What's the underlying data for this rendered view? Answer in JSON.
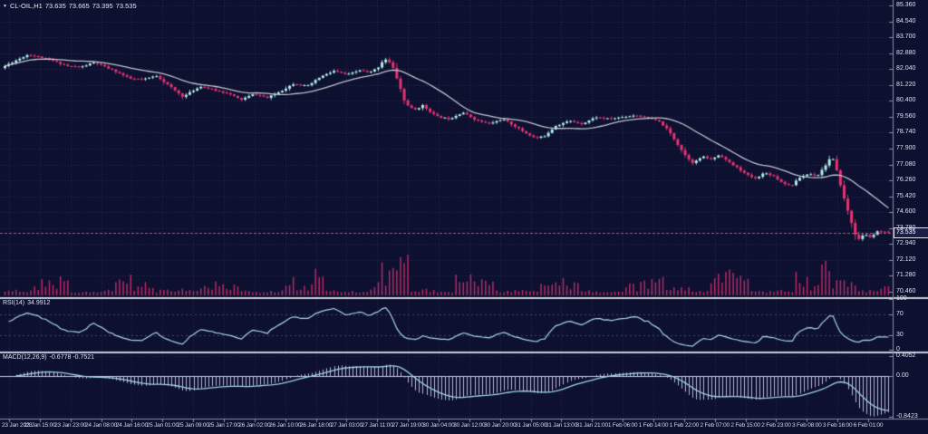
{
  "title_bar": {
    "dropdown_icon": "▼",
    "symbol": "CL-OIL,H1",
    "open": "73.635",
    "high": "73.665",
    "low": "73.395",
    "close": "73.535"
  },
  "main_panel": {
    "price_ticks": [
      "85.360",
      "84.540",
      "83.700",
      "82.880",
      "82.040",
      "81.220",
      "80.400",
      "79.560",
      "78.740",
      "77.900",
      "77.080",
      "76.260",
      "75.420",
      "74.600",
      "73.780",
      "72.940",
      "72.120",
      "71.280",
      "70.460"
    ],
    "current_price": "73.535"
  },
  "rsi_panel": {
    "label": "RSI(14)",
    "value": "34.9912",
    "ticks": [
      "100",
      "70",
      "30",
      "0"
    ]
  },
  "macd_panel": {
    "label": "MACD(12,26,9)",
    "value": "-0.6778 -0.7521",
    "ticks": [
      "0.4052",
      "0.00",
      "-0.8423"
    ]
  },
  "time_axis": {
    "labels": [
      "23 Jan 2023",
      "23 Jan 15:00",
      "23 Jan 23:00",
      "24 Jan 08:00",
      "24 Jan 16:00",
      "25 Jan 01:00",
      "25 Jan 09:00",
      "25 Jan 17:00",
      "26 Jan 02:00",
      "26 Jan 10:00",
      "26 Jan 18:00",
      "27 Jan 03:00",
      "27 Jan 11:00",
      "27 Jan 19:00",
      "30 Jan 04:00",
      "30 Jan 12:00",
      "30 Jan 20:00",
      "31 Jan 05:00",
      "31 Jan 13:00",
      "31 Jan 21:00",
      "1 Feb 06:00",
      "1 Feb 14:00",
      "1 Feb 22:00",
      "2 Feb 07:00",
      "2 Feb 15:00",
      "2 Feb 23:00",
      "3 Feb 08:00",
      "3 Feb 16:00",
      "6 Feb 01:00"
    ]
  },
  "chart_data": {
    "type": "candlestick",
    "title": "CL-OIL,H1",
    "timeframe": "H1",
    "panels": [
      "price+volume",
      "RSI(14)",
      "MACD(12,26,9)"
    ],
    "price_axis": {
      "min": 70.46,
      "max": 85.36,
      "tick_step": 0.82,
      "ticks": [
        85.36,
        84.54,
        83.7,
        82.88,
        82.04,
        81.22,
        80.4,
        79.56,
        78.74,
        77.9,
        77.08,
        76.26,
        75.42,
        74.6,
        73.78,
        72.94,
        72.12,
        71.28,
        70.46
      ]
    },
    "current_price": 73.535,
    "ohlc_last": {
      "open": 73.635,
      "high": 73.665,
      "low": 73.395,
      "close": 73.535
    },
    "candle_count": 240,
    "price_path_anchors": [
      [
        0.0,
        82.1
      ],
      [
        0.01,
        82.35
      ],
      [
        0.03,
        82.8
      ],
      [
        0.045,
        82.65
      ],
      [
        0.06,
        82.45
      ],
      [
        0.075,
        82.2
      ],
      [
        0.09,
        82.15
      ],
      [
        0.105,
        82.4
      ],
      [
        0.12,
        82.1
      ],
      [
        0.13,
        81.9
      ],
      [
        0.145,
        81.55
      ],
      [
        0.16,
        81.5
      ],
      [
        0.175,
        81.7
      ],
      [
        0.19,
        81.15
      ],
      [
        0.205,
        80.6
      ],
      [
        0.215,
        80.9
      ],
      [
        0.225,
        81.15
      ],
      [
        0.24,
        80.95
      ],
      [
        0.255,
        80.8
      ],
      [
        0.27,
        80.45
      ],
      [
        0.285,
        80.75
      ],
      [
        0.3,
        80.55
      ],
      [
        0.315,
        80.9
      ],
      [
        0.33,
        81.3
      ],
      [
        0.345,
        81.15
      ],
      [
        0.36,
        81.65
      ],
      [
        0.375,
        81.95
      ],
      [
        0.39,
        81.75
      ],
      [
        0.405,
        82.0
      ],
      [
        0.415,
        81.85
      ],
      [
        0.425,
        82.15
      ],
      [
        0.432,
        82.6
      ],
      [
        0.44,
        82.3
      ],
      [
        0.448,
        81.3
      ],
      [
        0.455,
        80.3
      ],
      [
        0.465,
        79.9
      ],
      [
        0.475,
        80.15
      ],
      [
        0.49,
        79.6
      ],
      [
        0.505,
        79.45
      ],
      [
        0.52,
        79.8
      ],
      [
        0.535,
        79.4
      ],
      [
        0.55,
        79.2
      ],
      [
        0.565,
        79.45
      ],
      [
        0.578,
        79.1
      ],
      [
        0.59,
        78.75
      ],
      [
        0.602,
        78.45
      ],
      [
        0.612,
        78.55
      ],
      [
        0.625,
        79.1
      ],
      [
        0.64,
        79.35
      ],
      [
        0.655,
        79.2
      ],
      [
        0.67,
        79.55
      ],
      [
        0.685,
        79.45
      ],
      [
        0.7,
        79.55
      ],
      [
        0.715,
        79.65
      ],
      [
        0.73,
        79.5
      ],
      [
        0.742,
        79.3
      ],
      [
        0.752,
        78.85
      ],
      [
        0.762,
        78.15
      ],
      [
        0.772,
        77.5
      ],
      [
        0.78,
        77.15
      ],
      [
        0.79,
        77.5
      ],
      [
        0.8,
        77.35
      ],
      [
        0.81,
        77.6
      ],
      [
        0.82,
        77.2
      ],
      [
        0.83,
        76.9
      ],
      [
        0.84,
        76.55
      ],
      [
        0.85,
        76.35
      ],
      [
        0.86,
        76.65
      ],
      [
        0.87,
        76.5
      ],
      [
        0.88,
        76.15
      ],
      [
        0.89,
        75.95
      ],
      [
        0.9,
        76.4
      ],
      [
        0.91,
        76.6
      ],
      [
        0.92,
        76.5
      ],
      [
        0.93,
        77.1
      ],
      [
        0.936,
        77.55
      ],
      [
        0.942,
        76.7
      ],
      [
        0.95,
        75.3
      ],
      [
        0.958,
        74.1
      ],
      [
        0.965,
        73.1
      ],
      [
        0.972,
        73.45
      ],
      [
        0.98,
        73.3
      ],
      [
        0.988,
        73.6
      ],
      [
        1.0,
        73.535
      ]
    ],
    "moving_average": {
      "type": "SMA",
      "period": 20
    },
    "indicators": {
      "rsi": {
        "period": 14,
        "last": 34.9912,
        "levels": [
          70,
          30
        ],
        "range": [
          0,
          100
        ]
      },
      "macd": {
        "fast": 12,
        "slow": 26,
        "signal": 9,
        "last_main": -0.6778,
        "last_signal": -0.7521,
        "axis_ticks": [
          0.4052,
          0.0,
          -0.8423
        ]
      }
    },
    "volume_pattern": {
      "bars_per_day": 23,
      "session_start_hour": 7,
      "session_end_hour": 17,
      "seed": 11
    },
    "x_axis_labels": [
      "23 Jan 2023",
      "23 Jan 15:00",
      "23 Jan 23:00",
      "24 Jan 08:00",
      "24 Jan 16:00",
      "25 Jan 01:00",
      "25 Jan 09:00",
      "25 Jan 17:00",
      "26 Jan 02:00",
      "26 Jan 10:00",
      "26 Jan 18:00",
      "27 Jan 03:00",
      "27 Jan 11:00",
      "27 Jan 19:00",
      "30 Jan 04:00",
      "30 Jan 12:00",
      "30 Jan 20:00",
      "31 Jan 05:00",
      "31 Jan 13:00",
      "31 Jan 21:00",
      "1 Feb 06:00",
      "1 Feb 14:00",
      "1 Feb 22:00",
      "2 Feb 07:00",
      "2 Feb 15:00",
      "2 Feb 23:00",
      "3 Feb 08:00",
      "3 Feb 16:00",
      "6 Feb 01:00"
    ],
    "colors": {
      "background": "#0d102f",
      "grid": "#262c55",
      "axis_text": "#dde1ec",
      "separator": "#c9cdda",
      "axis_line": "#8a90a8",
      "bull_body": "#b4ecea",
      "bull_wick": "#8fd9d6",
      "bear_body": "#e23572",
      "bear_wick": "#d93170",
      "ma_line": "#bfc3cf",
      "volume": "#b62a66",
      "price_line": "#d84478",
      "rsi_line": "#a9d7e2",
      "rsi_level": "#3f4478",
      "macd_hist": "#b6bad8",
      "macd_signal": "#9fd4e4",
      "macd_zero": "#c6cade"
    },
    "legend": "none",
    "grid": "dotted"
  }
}
